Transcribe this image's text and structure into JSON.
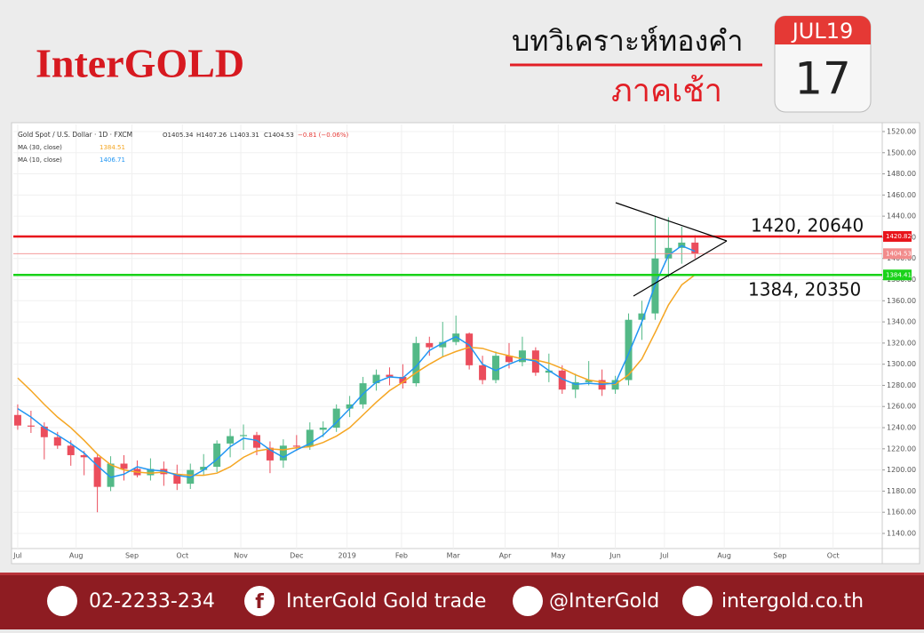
{
  "header": {
    "brand": "InterGOLD",
    "title": "บทวิเคราะห์ทองคำ",
    "subtitle": "ภาคเช้า",
    "calendar": {
      "month": "JUL19",
      "day": "17"
    }
  },
  "chart_data": {
    "type": "candlestick",
    "title": "Gold Spot / U.S. Dollar · 1D · FXCM",
    "ohlc_legend": [
      "O1405.34",
      "H1407.26",
      "L1403.31",
      "C1404.53",
      "−0.81 (−0.06%)"
    ],
    "up_color": "#53b987",
    "down_color": "#eb4d5c",
    "x": [
      0,
      1,
      2,
      3,
      4,
      5,
      6,
      7,
      8,
      9,
      10,
      11,
      12,
      13,
      14,
      15,
      16,
      17,
      18,
      19,
      20,
      21,
      22,
      23,
      24,
      25,
      26,
      27,
      28,
      29,
      30,
      31,
      32,
      33,
      34,
      35,
      36,
      37,
      38,
      39,
      40,
      41,
      42,
      43,
      44,
      45,
      46,
      47,
      48,
      49,
      50,
      51
    ],
    "open": [
      1252,
      1242,
      1241,
      1231,
      1223,
      1214,
      1212,
      1184,
      1206,
      1201,
      1195,
      1201,
      1196,
      1187,
      1200,
      1203,
      1225,
      1232,
      1233,
      1221,
      1209,
      1223,
      1222,
      1238,
      1240,
      1258,
      1262,
      1282,
      1290,
      1288,
      1282,
      1320,
      1316,
      1321,
      1329,
      1299,
      1285,
      1308,
      1302,
      1313,
      1292,
      1294,
      1276,
      1283,
      1285,
      1276,
      1285,
      1342,
      1348,
      1400,
      1410,
      1415
    ],
    "high": [
      1262,
      1256,
      1245,
      1236,
      1228,
      1218,
      1215,
      1213,
      1214,
      1209,
      1211,
      1208,
      1205,
      1206,
      1215,
      1228,
      1239,
      1243,
      1236,
      1227,
      1229,
      1233,
      1245,
      1246,
      1262,
      1270,
      1288,
      1295,
      1297,
      1300,
      1326,
      1326,
      1340,
      1346,
      1330,
      1308,
      1312,
      1320,
      1326,
      1316,
      1310,
      1299,
      1291,
      1303,
      1295,
      1289,
      1348,
      1360,
      1440,
      1439,
      1430,
      1422
    ],
    "low": [
      1238,
      1235,
      1210,
      1220,
      1204,
      1195,
      1160,
      1180,
      1190,
      1193,
      1190,
      1185,
      1181,
      1182,
      1195,
      1198,
      1212,
      1219,
      1214,
      1197,
      1202,
      1218,
      1219,
      1231,
      1236,
      1250,
      1258,
      1275,
      1280,
      1277,
      1279,
      1308,
      1307,
      1318,
      1295,
      1281,
      1282,
      1296,
      1298,
      1289,
      1283,
      1272,
      1268,
      1280,
      1270,
      1272,
      1280,
      1323,
      1342,
      1382,
      1395,
      1400
    ],
    "close": [
      1242,
      1241,
      1231,
      1223,
      1214,
      1212,
      1184,
      1206,
      1201,
      1195,
      1201,
      1196,
      1187,
      1200,
      1203,
      1225,
      1232,
      1233,
      1221,
      1209,
      1223,
      1222,
      1238,
      1240,
      1258,
      1262,
      1282,
      1290,
      1288,
      1282,
      1320,
      1316,
      1321,
      1329,
      1299,
      1285,
      1308,
      1302,
      1313,
      1292,
      1294,
      1276,
      1283,
      1285,
      1276,
      1285,
      1342,
      1348,
      1400,
      1410,
      1415,
      1404.53
    ],
    "series": [
      {
        "name": "MA (30, close)",
        "color": "#f5a623",
        "values": [
          1287,
          1275,
          1262,
          1250,
          1240,
          1228,
          1215,
          1205,
          1200,
          1198,
          1197,
          1198,
          1196,
          1195,
          1195,
          1197,
          1203,
          1212,
          1218,
          1220,
          1219,
          1221,
          1222,
          1226,
          1232,
          1240,
          1252,
          1264,
          1275,
          1283,
          1292,
          1300,
          1307,
          1312,
          1316,
          1315,
          1311,
          1308,
          1305,
          1304,
          1301,
          1296,
          1290,
          1285,
          1283,
          1281,
          1290,
          1305,
          1330,
          1356,
          1375,
          1384.51
        ]
      },
      {
        "name": "MA (10, close)",
        "color": "#2196f3",
        "values": [
          1258,
          1250,
          1240,
          1233,
          1225,
          1216,
          1204,
          1193,
          1196,
          1203,
          1200,
          1199,
          1195,
          1193,
          1200,
          1210,
          1222,
          1230,
          1228,
          1219,
          1212,
          1219,
          1225,
          1233,
          1245,
          1258,
          1272,
          1283,
          1288,
          1287,
          1298,
          1313,
          1320,
          1326,
          1318,
          1300,
          1294,
          1300,
          1305,
          1303,
          1294,
          1286,
          1281,
          1282,
          1281,
          1282,
          1310,
          1340,
          1375,
          1403,
          1412,
          1406.71
        ]
      }
    ],
    "hlines": [
      {
        "value": 1420.82,
        "color": "#e8141b"
      },
      {
        "value": 1404.53,
        "color": "#f28b8b"
      },
      {
        "value": 1384.41,
        "color": "#19d219"
      }
    ],
    "annotations": [
      "1420, 20640",
      "1384, 20350"
    ],
    "xlim": [
      -0.33,
      65.1
    ],
    "xticks": [
      {
        "value": 0,
        "label": "Jul"
      },
      {
        "value": 4.4,
        "label": "Aug"
      },
      {
        "value": 8.6,
        "label": "Sep"
      },
      {
        "value": 12.4,
        "label": "Oct"
      },
      {
        "value": 16.8,
        "label": "Nov"
      },
      {
        "value": 21.0,
        "label": "Dec"
      },
      {
        "value": 24.8,
        "label": "2019"
      },
      {
        "value": 28.9,
        "label": "Feb"
      },
      {
        "value": 32.8,
        "label": "Mar"
      },
      {
        "value": 36.7,
        "label": "Apr"
      },
      {
        "value": 40.7,
        "label": "May"
      },
      {
        "value": 45.0,
        "label": "Jun"
      },
      {
        "value": 48.7,
        "label": "Jul"
      },
      {
        "value": 53.2,
        "label": "Aug"
      },
      {
        "value": 57.4,
        "label": "Sep"
      },
      {
        "value": 61.4,
        "label": "Oct"
      }
    ],
    "ylim": [
      1125.7,
      1526.7
    ],
    "yticks": [
      {
        "value": 1140,
        "label": "1140.00"
      },
      {
        "value": 1160,
        "label": "1160.00"
      },
      {
        "value": 1180,
        "label": "1180.00"
      },
      {
        "value": 1200,
        "label": "1200.00"
      },
      {
        "value": 1220,
        "label": "1220.00"
      },
      {
        "value": 1240,
        "label": "1240.00"
      },
      {
        "value": 1260,
        "label": "1260.00"
      },
      {
        "value": 1280,
        "label": "1280.00"
      },
      {
        "value": 1300,
        "label": "1300.00"
      },
      {
        "value": 1320,
        "label": "1320.00"
      },
      {
        "value": 1340,
        "label": "1340.00"
      },
      {
        "value": 1360,
        "label": "1360.00"
      },
      {
        "value": 1380,
        "label": "1380.00"
      },
      {
        "value": 1400,
        "label": "1400.00"
      },
      {
        "value": 1420,
        "label": "1420.00"
      },
      {
        "value": 1440,
        "label": "1440.00"
      },
      {
        "value": 1460,
        "label": "1460.00"
      },
      {
        "value": 1480,
        "label": "1480.00"
      },
      {
        "value": 1500,
        "label": "1500.00"
      },
      {
        "value": 1520,
        "label": "1520.00"
      }
    ],
    "grid": true
  },
  "footer": {
    "phone": "02-2233-234",
    "facebook": "InterGold Gold trade",
    "line": "@InterGold",
    "website": "intergold.co.th"
  }
}
